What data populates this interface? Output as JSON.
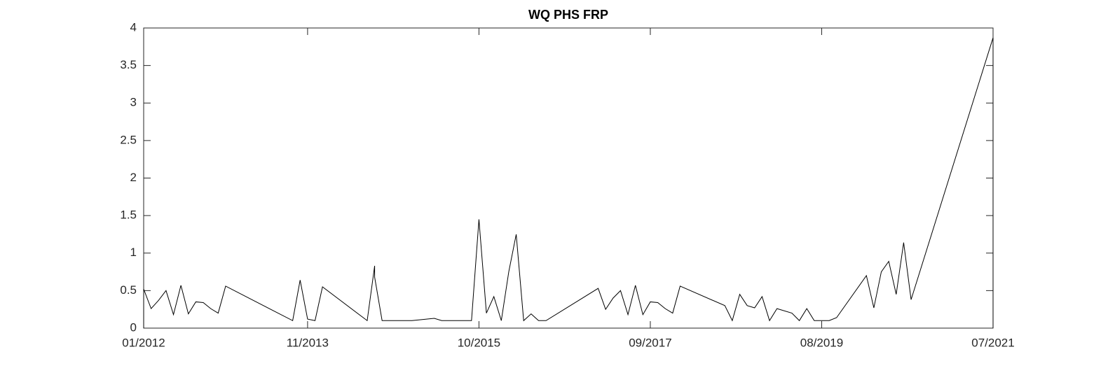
{
  "chart_data": {
    "type": "line",
    "title": "WQ PHS FRP",
    "x": [
      "01/2012",
      "01/2012",
      "02/2012",
      "03/2012",
      "04/2012",
      "05/2012",
      "06/2012",
      "07/2012",
      "08/2012",
      "09/2012",
      "10/2012",
      "11/2012",
      "12/2012",
      "09/2013",
      "10/2013",
      "11/2013",
      "12/2013",
      "01/2014",
      "07/2014",
      "08/2014",
      "08/2014",
      "09/2014",
      "01/2015",
      "04/2015",
      "05/2015",
      "09/2015",
      "10/2015",
      "11/2015",
      "12/2015",
      "01/2016",
      "02/2016",
      "03/2016",
      "04/2016",
      "05/2016",
      "06/2016",
      "07/2016",
      "02/2017",
      "03/2017",
      "04/2017",
      "05/2017",
      "06/2017",
      "07/2017",
      "08/2017",
      "09/2017",
      "10/2017",
      "11/2017",
      "12/2017",
      "01/2018",
      "07/2018",
      "08/2018",
      "09/2018",
      "10/2018",
      "11/2018",
      "12/2018",
      "01/2019",
      "02/2019",
      "04/2019",
      "05/2019",
      "06/2019",
      "07/2019",
      "09/2019",
      "10/2019",
      "02/2020",
      "03/2020",
      "04/2020",
      "05/2020",
      "06/2020",
      "07/2020",
      "08/2020",
      "07/2021",
      "07/2021"
    ],
    "series": [
      {
        "color": "#000000",
        "values": [
          0,
          0.52,
          0.26,
          0.37,
          0.5,
          0.18,
          0.57,
          0.19,
          0.35,
          0.34,
          0.26,
          0.2,
          0.56,
          0.1,
          0.64,
          0.12,
          0.1,
          0.55,
          0.1,
          0.83,
          0.68,
          0.1,
          0.1,
          0.13,
          0.1,
          0.1,
          1.45,
          0.2,
          0.42,
          0.1,
          0.75,
          1.25,
          0.1,
          0.19,
          0.1,
          0.1,
          0.53,
          0.25,
          0.4,
          0.5,
          0.18,
          0.57,
          0.18,
          0.35,
          0.34,
          0.26,
          0.2,
          0.56,
          0.3,
          0.1,
          0.45,
          0.3,
          0.27,
          0.42,
          0.1,
          0.26,
          0.2,
          0.1,
          0.26,
          0.1,
          0.1,
          0.14,
          0.7,
          0.27,
          0.75,
          0.89,
          0.45,
          1.14,
          0.38,
          3.87,
          0
        ]
      }
    ],
    "xlim": [
      "01/2012",
      "07/2021"
    ],
    "xticks": [
      "01/2012",
      "11/2013",
      "10/2015",
      "09/2017",
      "08/2019",
      "07/2021"
    ],
    "ylim": [
      0,
      4
    ],
    "yticks": [
      0,
      0.5,
      1,
      1.5,
      2,
      2.5,
      3,
      3.5,
      4
    ]
  }
}
